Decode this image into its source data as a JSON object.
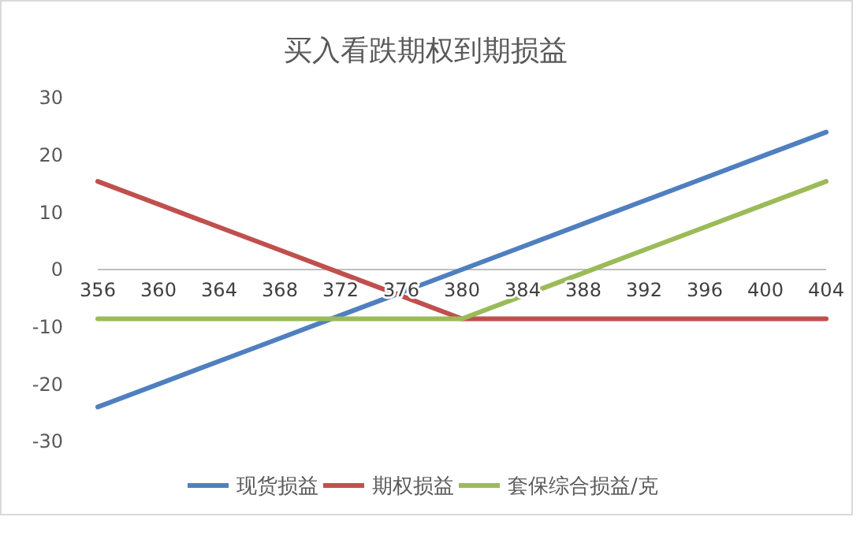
{
  "chart_data": {
    "type": "line",
    "title": "买入看跌期权到期损益",
    "categories": [
      "356",
      "360",
      "364",
      "368",
      "372",
      "376",
      "380",
      "384",
      "388",
      "392",
      "396",
      "400",
      "404"
    ],
    "series": [
      {
        "name": "现货损益",
        "color": "#4f7fbf",
        "values": [
          -24,
          -20,
          -16,
          -12,
          -8,
          -4,
          0,
          4,
          8,
          12,
          16,
          20,
          24
        ]
      },
      {
        "name": "期权损益",
        "color": "#c0504d",
        "values": [
          15.4,
          11.4,
          7.4,
          3.4,
          -0.6,
          -4.6,
          -8.6,
          -8.6,
          -8.6,
          -8.6,
          -8.6,
          -8.6,
          -8.6
        ]
      },
      {
        "name": "套保综合损益/克",
        "color": "#9bbb59",
        "values": [
          -8.6,
          -8.6,
          -8.6,
          -8.6,
          -8.6,
          -8.6,
          -8.6,
          -4.6,
          -0.6,
          3.4,
          7.4,
          11.4,
          15.4
        ]
      }
    ],
    "ylim": [
      -30,
      30
    ],
    "yticks": [
      -30,
      -20,
      -10,
      0,
      10,
      20,
      30
    ],
    "legend": "bottom",
    "marker": "none",
    "line_style": "solid"
  }
}
